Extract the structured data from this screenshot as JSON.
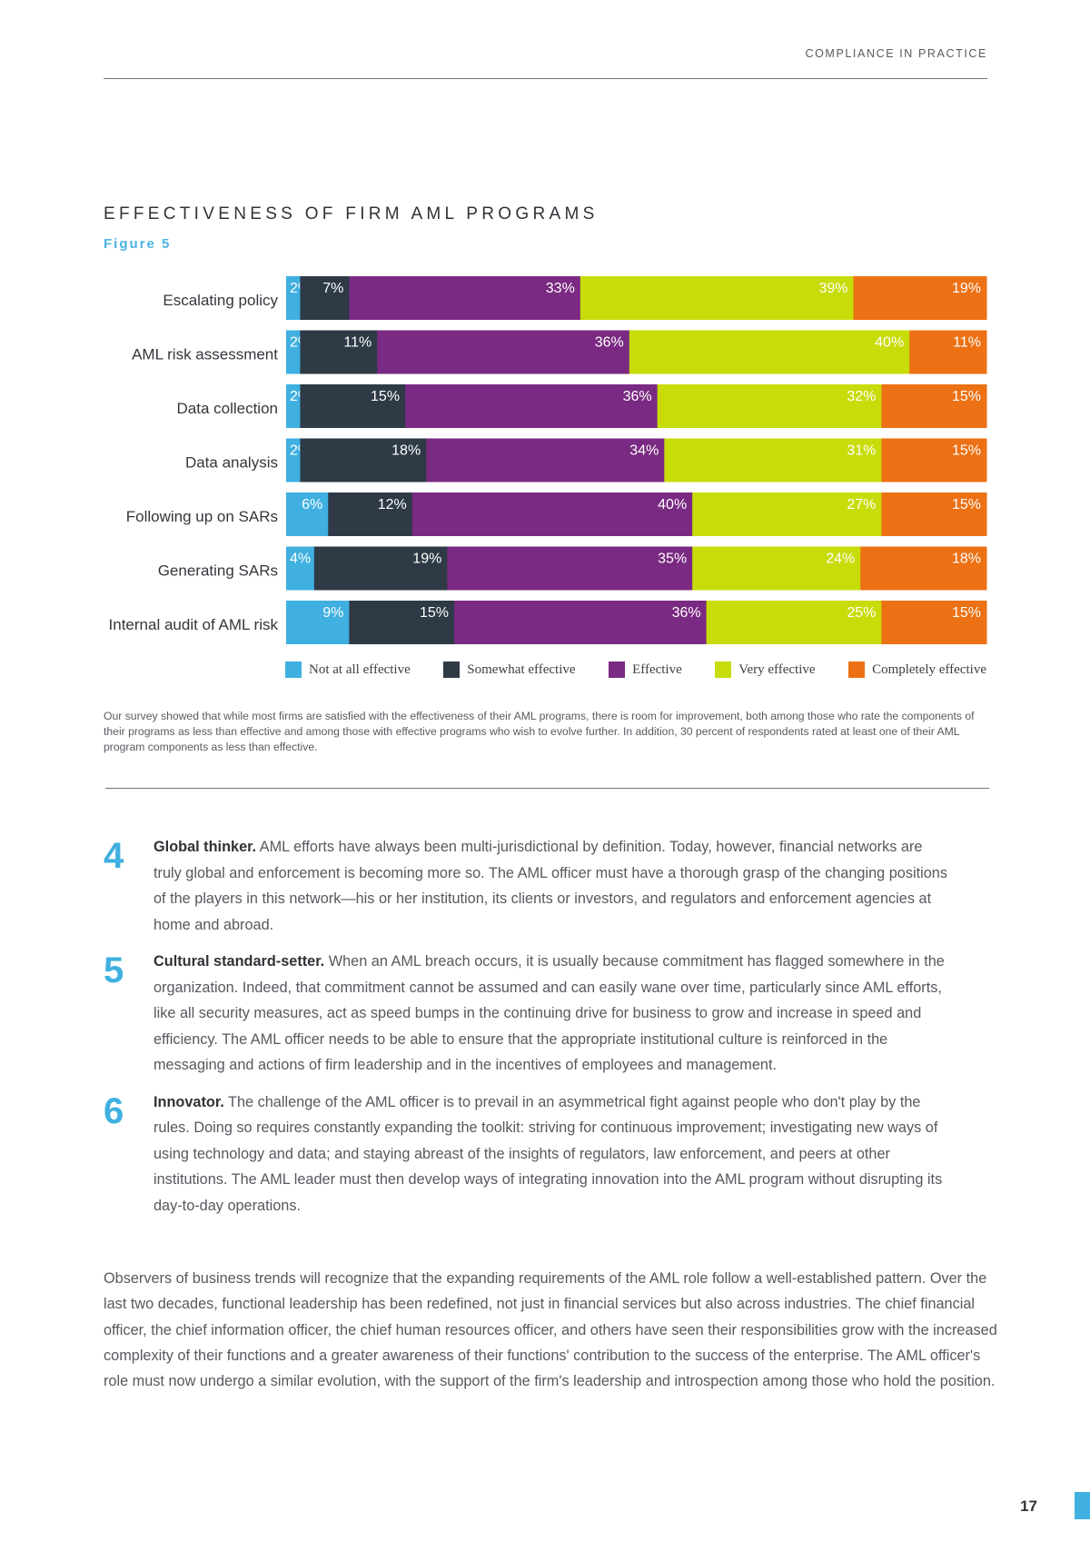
{
  "header": {
    "running_head": "COMPLIANCE IN PRACTICE"
  },
  "figure": {
    "title": "EFFECTIVENESS OF FIRM AML PROGRAMS",
    "label": "Figure 5"
  },
  "chart_data": {
    "type": "bar",
    "orientation": "horizontal",
    "stacked": true,
    "title": "EFFECTIVENESS OF FIRM AML PROGRAMS",
    "categories": [
      "Escalating policy",
      "AML risk assessment",
      "Data collection",
      "Data analysis",
      "Following up on SARs",
      "Generating SARs",
      "Internal audit of AML risk"
    ],
    "series": [
      {
        "name": "Not at all effective",
        "color": "#3fb0e0",
        "label_color": "#ffffff",
        "values": [
          2,
          2,
          2,
          2,
          6,
          4,
          9
        ]
      },
      {
        "name": "Somewhat effective",
        "color": "#2e3a46",
        "label_color": "#ffffff",
        "values": [
          7,
          11,
          15,
          18,
          12,
          19,
          15
        ]
      },
      {
        "name": "Effective",
        "color": "#7a2a82",
        "label_color": "#ffffff",
        "values": [
          33,
          36,
          36,
          34,
          40,
          35,
          36
        ]
      },
      {
        "name": "Very effective",
        "color": "#c8dc0a",
        "label_color": "#ffffff",
        "values": [
          39,
          40,
          32,
          31,
          27,
          24,
          25
        ]
      },
      {
        "name": "Completely effective",
        "color": "#ec7114",
        "label_color": "#ffffff",
        "values": [
          19,
          11,
          15,
          15,
          15,
          18,
          15
        ]
      }
    ],
    "value_suffix": "%",
    "legend_position": "bottom"
  },
  "legend": [
    {
      "label": "Not at all effective",
      "color": "#3fb0e0"
    },
    {
      "label": "Somewhat effective",
      "color": "#2e3a46"
    },
    {
      "label": "Effective",
      "color": "#7a2a82"
    },
    {
      "label": "Very effective",
      "color": "#c8dc0a"
    },
    {
      "label": "Completely effective",
      "color": "#ec7114"
    }
  ],
  "caption": "Our survey showed that while most firms are satisfied with the effectiveness of their AML programs, there is room for improvement, both among those who rate the components of their programs as less than effective and among those with effective programs who wish to evolve further. In addition, 30 percent of respondents rated at least one of their AML program components as less than effective.",
  "items": [
    {
      "number": "4",
      "lead": "Global thinker.",
      "text": " AML efforts have always been multi-jurisdictional by definition. Today, however, financial networks are truly global and enforcement is becoming more so. The AML officer must have a thorough grasp of the changing positions of the players in this network—his or her institution, its clients or investors, and regulators and enforcement agencies at home and abroad."
    },
    {
      "number": "5",
      "lead": "Cultural standard-setter.",
      "text": " When an AML breach occurs, it is usually because commitment has flagged somewhere in the organization. Indeed, that commitment cannot be assumed and can easily wane over time, particularly since AML efforts, like all security measures, act as speed bumps in the continuing drive for business to grow and increase in speed and efficiency. The AML officer needs to be able to ensure that the appropriate institutional culture is reinforced in the messaging and actions of firm leadership and in the incentives of employees and management."
    },
    {
      "number": "6",
      "lead": "Innovator.",
      "text": " The challenge of the AML officer is to prevail in an asymmetrical fight against people who don't play by the rules. Doing so requires constantly expanding the toolkit: striving for continuous improvement; investigating new ways of using technology and data; and staying abreast of the insights of regulators, law enforcement, and peers at other institutions. The AML leader must then develop ways of integrating innovation into the AML program without disrupting its day-to-day operations."
    }
  ],
  "closing": "Observers of business trends will recognize that the expanding requirements of the AML role follow a well-established pattern. Over the last two decades, functional leadership has been redefined, not just in financial services but also across industries. The chief financial officer, the chief information officer, the chief human resources officer, and others have seen their responsibilities grow with the increased complexity of their functions and a greater awareness of their functions' contribution to the success of the enterprise. The AML officer's role must now undergo a similar evolution, with the support of the firm's leadership and introspection among those who hold the position.",
  "footer": {
    "page_number": "17"
  }
}
